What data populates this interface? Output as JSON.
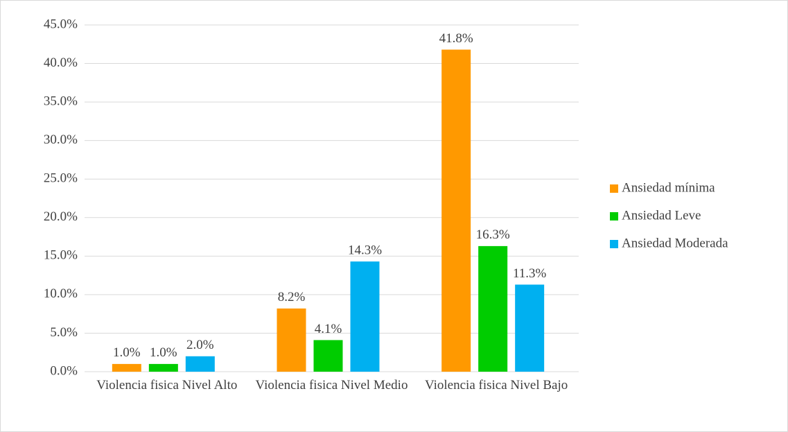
{
  "chart_data": {
    "type": "bar",
    "categories": [
      "Violencia fisica Nivel Alto",
      "Violencia fisica Nivel Medio",
      "Violencia fisica Nivel Bajo"
    ],
    "series": [
      {
        "name": "Ansiedad mínima",
        "color": "#ff9900",
        "values": [
          1.0,
          8.2,
          41.8
        ],
        "value_labels": [
          "1.0%",
          "8.2%",
          "41.8%"
        ]
      },
      {
        "name": "Ansiedad Leve",
        "color": "#00cc00",
        "values": [
          1.0,
          4.1,
          16.3
        ],
        "value_labels": [
          "1.0%",
          "4.1%",
          "16.3%"
        ]
      },
      {
        "name": "Ansiedad Moderada",
        "color": "#00b0f0",
        "values": [
          2.0,
          14.3,
          11.3
        ],
        "value_labels": [
          "2.0%",
          "14.3%",
          "11.3%"
        ]
      }
    ],
    "ylim": [
      0,
      45
    ],
    "yticks": [
      {
        "value": 0,
        "label": "0.0%"
      },
      {
        "value": 5,
        "label": "5.0%"
      },
      {
        "value": 10,
        "label": "10.0%"
      },
      {
        "value": 15,
        "label": "15.0%"
      },
      {
        "value": 20,
        "label": "20.0%"
      },
      {
        "value": 25,
        "label": "25.0%"
      },
      {
        "value": 30,
        "label": "30.0%"
      },
      {
        "value": 35,
        "label": "35.0%"
      },
      {
        "value": 40,
        "label": "40.0%"
      },
      {
        "value": 45,
        "label": "45.0%"
      }
    ],
    "grid": true,
    "legend": "right"
  }
}
